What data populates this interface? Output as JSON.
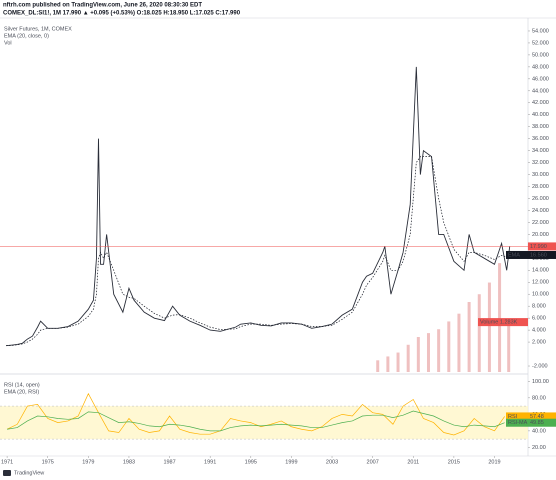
{
  "header": {
    "publisher": "nftrh.com published on TradingView.com, June 26, 2020 08:30:30 EDT",
    "symbol": "COMEX_DL:SI1!, 1M  17.990 ▲ +0.095 (+0.53%) O:18.025 H:18.950 L:17.025 C:17.990",
    "brand": "TradingView"
  },
  "chart_data": [
    {
      "type": "line",
      "x": [
        1970.9,
        1971.5,
        1972,
        1972.5,
        1973,
        1973.5,
        1974,
        1974.3,
        1975,
        1976,
        1977,
        1978,
        1979,
        1979.5,
        1979.8,
        1980,
        1980.2,
        1980.5,
        1980.8,
        1981.5,
        1982.4,
        1983,
        1983.5,
        1984.5,
        1985.5,
        1986.5,
        1987.3,
        1988,
        1989,
        1990,
        1991,
        1992,
        1993.5,
        1994,
        1995,
        1996,
        1997,
        1998,
        1999,
        2000,
        2001,
        2002,
        2003,
        2004,
        2005,
        2006,
        2006.4,
        2007,
        2008,
        2008.2,
        2008.8,
        2009.5,
        2010,
        2010.7,
        2011.3,
        2011.7,
        2012,
        2012.8,
        2013.5,
        2014,
        2015,
        2016,
        2016.5,
        2017,
        2018,
        2019,
        2019.7,
        2020.2,
        2020.5
      ],
      "xlim": [
        1970.3,
        2022.3
      ],
      "ylim": [
        -3,
        55.5
      ],
      "y2lim": [
        0,
        9
      ],
      "yticks": [
        {
          "value": 54,
          "label": "54.000"
        },
        {
          "value": 52,
          "label": "52.000"
        },
        {
          "value": 50,
          "label": "50.000"
        },
        {
          "value": 48,
          "label": "48.000"
        },
        {
          "value": 46,
          "label": "46.000"
        },
        {
          "value": 44,
          "label": "44.000"
        },
        {
          "value": 42,
          "label": "42.000"
        },
        {
          "value": 40,
          "label": "40.000"
        },
        {
          "value": 38,
          "label": "38.000"
        },
        {
          "value": 36,
          "label": "36.000"
        },
        {
          "value": 34,
          "label": "34.000"
        },
        {
          "value": 32,
          "label": "32.000"
        },
        {
          "value": 30,
          "label": "30.000"
        },
        {
          "value": 28,
          "label": "28.000"
        },
        {
          "value": 26,
          "label": "26.000"
        },
        {
          "value": 24,
          "label": "24.000"
        },
        {
          "value": 22,
          "label": "22.000"
        },
        {
          "value": 20,
          "label": "20.000"
        },
        {
          "value": 18,
          "label": "18.000"
        },
        {
          "value": 16,
          "label": "16.000"
        },
        {
          "value": 14,
          "label": "14.000"
        },
        {
          "value": 12,
          "label": "12.000"
        },
        {
          "value": 10,
          "label": "10.000"
        },
        {
          "value": 8,
          "label": "8.000"
        },
        {
          "value": 6,
          "label": "6.000"
        },
        {
          "value": 4,
          "label": "4.000"
        },
        {
          "value": 2,
          "label": "2.000"
        },
        {
          "value": -2,
          "label": "-2.000"
        }
      ],
      "series": [
        {
          "name": "Silver Futures, 1M, COMEX",
          "color": "#2a2e39",
          "tag": "17.990",
          "tag_color": "#ef5350",
          "values": [
            1.4,
            1.5,
            1.6,
            1.8,
            2.5,
            3.0,
            4.5,
            5.5,
            4.3,
            4.3,
            4.6,
            5.5,
            7.5,
            9,
            16,
            36,
            15,
            15,
            20,
            10,
            7,
            11,
            9,
            7,
            6,
            5.6,
            8,
            6.5,
            5.5,
            4.8,
            4,
            3.8,
            4.5,
            5,
            5.2,
            4.8,
            4.7,
            5.2,
            5.2,
            5,
            4.3,
            4.6,
            5,
            6.5,
            7.5,
            12,
            13,
            13.5,
            17,
            18,
            10,
            14,
            17,
            25,
            48,
            30,
            34,
            33,
            20,
            20,
            15.5,
            14,
            20,
            17,
            16,
            15,
            18.5,
            14,
            17.99
          ]
        },
        {
          "name": "EMA (20, close, 0)",
          "color": "#131722",
          "dashed": true,
          "tag": "16.560",
          "tag_name": "EMA",
          "tag_color": "#131722",
          "values": [
            1.4,
            1.45,
            1.55,
            1.7,
            2.0,
            2.5,
            3.3,
            4.0,
            4.3,
            4.3,
            4.5,
            5.0,
            6.3,
            7.5,
            10,
            16,
            17,
            16,
            17,
            14,
            10,
            9.5,
            9.3,
            8,
            6.8,
            6,
            6.5,
            6.6,
            6,
            5.2,
            4.5,
            4.1,
            4.2,
            4.6,
            5,
            5,
            4.8,
            5,
            5.1,
            5,
            4.6,
            4.6,
            4.8,
            5.8,
            7,
            10,
            11.5,
            12.8,
            15.5,
            16.5,
            14,
            14,
            15.5,
            20,
            32,
            33,
            33,
            33,
            26,
            22,
            17.5,
            15.5,
            17,
            17,
            16.5,
            15.8,
            16.5,
            16.2,
            16.56
          ]
        },
        {
          "name": "Vol",
          "type": "bar",
          "axis": "y2",
          "color": "#e8a5a5",
          "tag": "Volume  1.283K",
          "tag_color": "#ef5350",
          "x": [
            2007.5,
            2008.5,
            2009.5,
            2010.5,
            2011.5,
            2012.5,
            2013.5,
            2014.5,
            2015.5,
            2016.5,
            2017.5,
            2018.5,
            2019.5,
            2020.4
          ],
          "values": [
            0.3,
            0.4,
            0.5,
            0.7,
            0.9,
            1.0,
            1.1,
            1.3,
            1.5,
            1.8,
            2.0,
            2.3,
            2.8,
            1.283
          ]
        }
      ]
    },
    {
      "type": "line",
      "x": [
        1971,
        1972,
        1973,
        1974,
        1975,
        1976,
        1977,
        1978,
        1979,
        1980,
        1981,
        1982,
        1983,
        1984,
        1985,
        1986,
        1987,
        1988,
        1989,
        1990,
        1991,
        1992,
        1993,
        1994,
        1995,
        1996,
        1997,
        1998,
        1999,
        2000,
        2001,
        2002,
        2003,
        2004,
        2005,
        2006,
        2007,
        2008,
        2009,
        2010,
        2011,
        2012,
        2013,
        2014,
        2015,
        2016,
        2017,
        2018,
        2019,
        2020
      ],
      "xlim": [
        1970.3,
        2022.3
      ],
      "ylim": [
        12,
        104
      ],
      "band": [
        30,
        70
      ],
      "yticks": [
        {
          "value": 100,
          "label": "100.00"
        },
        {
          "value": 80,
          "label": "80.00"
        },
        {
          "value": 60,
          "label": "60.00"
        },
        {
          "value": 40,
          "label": "40.00"
        },
        {
          "value": 20,
          "label": "20.00"
        }
      ],
      "xticks": [
        1971,
        1975,
        1979,
        1983,
        1987,
        1991,
        1995,
        1999,
        2003,
        2007,
        2011,
        2015,
        2019
      ],
      "series": [
        {
          "name": "RSI (14, open)",
          "color": "#ffb300",
          "tag": "57.48",
          "tag_name": "RSI",
          "tag_color": "#ffb300",
          "values": [
            42,
            48,
            70,
            72,
            55,
            50,
            52,
            58,
            85,
            62,
            40,
            38,
            55,
            42,
            38,
            40,
            58,
            42,
            38,
            36,
            36,
            40,
            55,
            52,
            50,
            45,
            48,
            52,
            45,
            42,
            40,
            45,
            55,
            60,
            58,
            72,
            62,
            60,
            48,
            70,
            78,
            55,
            50,
            38,
            35,
            40,
            55,
            45,
            40,
            57.48
          ]
        },
        {
          "name": "EMA (20, RSI)",
          "color": "#4caf50",
          "tag": "49.85",
          "tag_name": "RSI-MA",
          "tag_color": "#4caf50",
          "values": [
            42,
            44,
            52,
            58,
            57,
            55,
            54,
            55,
            63,
            62,
            56,
            50,
            51,
            49,
            46,
            45,
            48,
            47,
            45,
            42,
            40,
            40,
            44,
            46,
            47,
            46,
            47,
            48,
            47,
            46,
            44,
            44,
            47,
            50,
            52,
            58,
            59,
            59,
            56,
            59,
            64,
            61,
            58,
            52,
            47,
            45,
            47,
            46,
            45,
            49.85
          ]
        }
      ]
    }
  ]
}
